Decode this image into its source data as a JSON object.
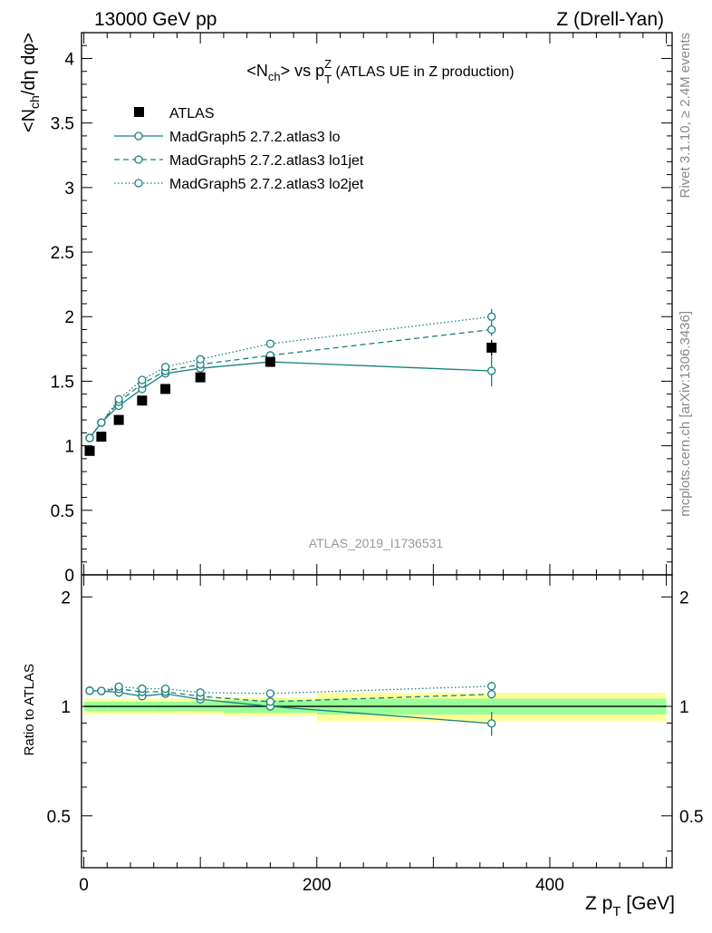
{
  "header": {
    "left": "13000 GeV pp",
    "right": "Z (Drell-Yan)"
  },
  "side_labels": {
    "rivet": "Rivet 3.1.10, ≥ 2.4M events",
    "mcplots": "mcplots.cern.ch [arXiv:1306.3436]"
  },
  "colors": {
    "data": "#000000",
    "mc": "#1a8080",
    "band_inner": "#99ff99",
    "band_outer": "#ffff99"
  },
  "chart_data": {
    "type": "scatter",
    "title": "<Nch> vs pTZ (ATLAS UE in Z production)",
    "title_parts": {
      "pre": "<N",
      "sub1": "ch",
      "mid": "> vs p",
      "sup": "Z",
      "sub2": "T",
      "post": " (ATLAS UE in Z production)"
    },
    "analysis_label": "ATLAS_2019_I1736531",
    "xlabel": "Z p_T [GeV]",
    "xlabel_parts": {
      "pre": "Z p",
      "sub": "T",
      "post": " [GeV]"
    },
    "ylabel": "<Nch/dη dφ>",
    "ylabel_parts": {
      "pre": "<N",
      "sub": "ch",
      "post": "/dη dφ>"
    },
    "ratio_ylabel": "Ratio to ATLAS",
    "xlim": [
      -2,
      505
    ],
    "ylim": [
      0,
      4.2
    ],
    "ratio_ylim": [
      0.36,
      2.3
    ],
    "ratio_log": true,
    "xticks": [
      "0",
      "200",
      "400"
    ],
    "yticks": [
      "0",
      "0.5",
      "1",
      "1.5",
      "2",
      "2.5",
      "3",
      "3.5",
      "4"
    ],
    "ratio_yticks": [
      "0.5",
      "1",
      "2"
    ],
    "legend_position": "top-left",
    "data": {
      "name": "ATLAS",
      "x": [
        5,
        15,
        30,
        50,
        70,
        100,
        160,
        350
      ],
      "y": [
        0.96,
        1.07,
        1.2,
        1.35,
        1.44,
        1.53,
        1.65,
        1.76
      ],
      "xerr": [
        5,
        5,
        10,
        10,
        10,
        20,
        40,
        150
      ],
      "yerr": [
        0.02,
        0.02,
        0.02,
        0.02,
        0.02,
        0.03,
        0.03,
        0.06
      ],
      "band_inner": [
        0.03,
        0.03,
        0.03,
        0.03,
        0.03,
        0.03,
        0.04,
        0.05
      ],
      "band_outer": [
        0.05,
        0.05,
        0.05,
        0.05,
        0.05,
        0.05,
        0.06,
        0.09
      ]
    },
    "series": [
      {
        "name": "MadGraph5 2.7.2.atlas3 lo",
        "style": "solid",
        "x": [
          5,
          15,
          30,
          50,
          70,
          100,
          160,
          350
        ],
        "y": [
          1.06,
          1.18,
          1.31,
          1.44,
          1.56,
          1.6,
          1.65,
          1.58
        ],
        "yerr": [
          0.01,
          0.01,
          0.01,
          0.01,
          0.01,
          0.01,
          0.01,
          0.12
        ]
      },
      {
        "name": "MadGraph5 2.7.2.atlas3 lo1jet",
        "style": "dashed",
        "x": [
          5,
          15,
          30,
          50,
          70,
          100,
          160,
          350
        ],
        "y": [
          1.06,
          1.18,
          1.34,
          1.48,
          1.58,
          1.63,
          1.7,
          1.9
        ],
        "yerr": [
          0.01,
          0.01,
          0.01,
          0.01,
          0.01,
          0.01,
          0.01,
          0.05
        ]
      },
      {
        "name": "MadGraph5 2.7.2.atlas3 lo2jet",
        "style": "dotted",
        "x": [
          5,
          15,
          30,
          50,
          70,
          100,
          160,
          350
        ],
        "y": [
          1.06,
          1.18,
          1.36,
          1.51,
          1.61,
          1.67,
          1.79,
          2.0
        ],
        "yerr": [
          0.01,
          0.01,
          0.01,
          0.01,
          0.01,
          0.01,
          0.01,
          0.06
        ]
      }
    ]
  }
}
